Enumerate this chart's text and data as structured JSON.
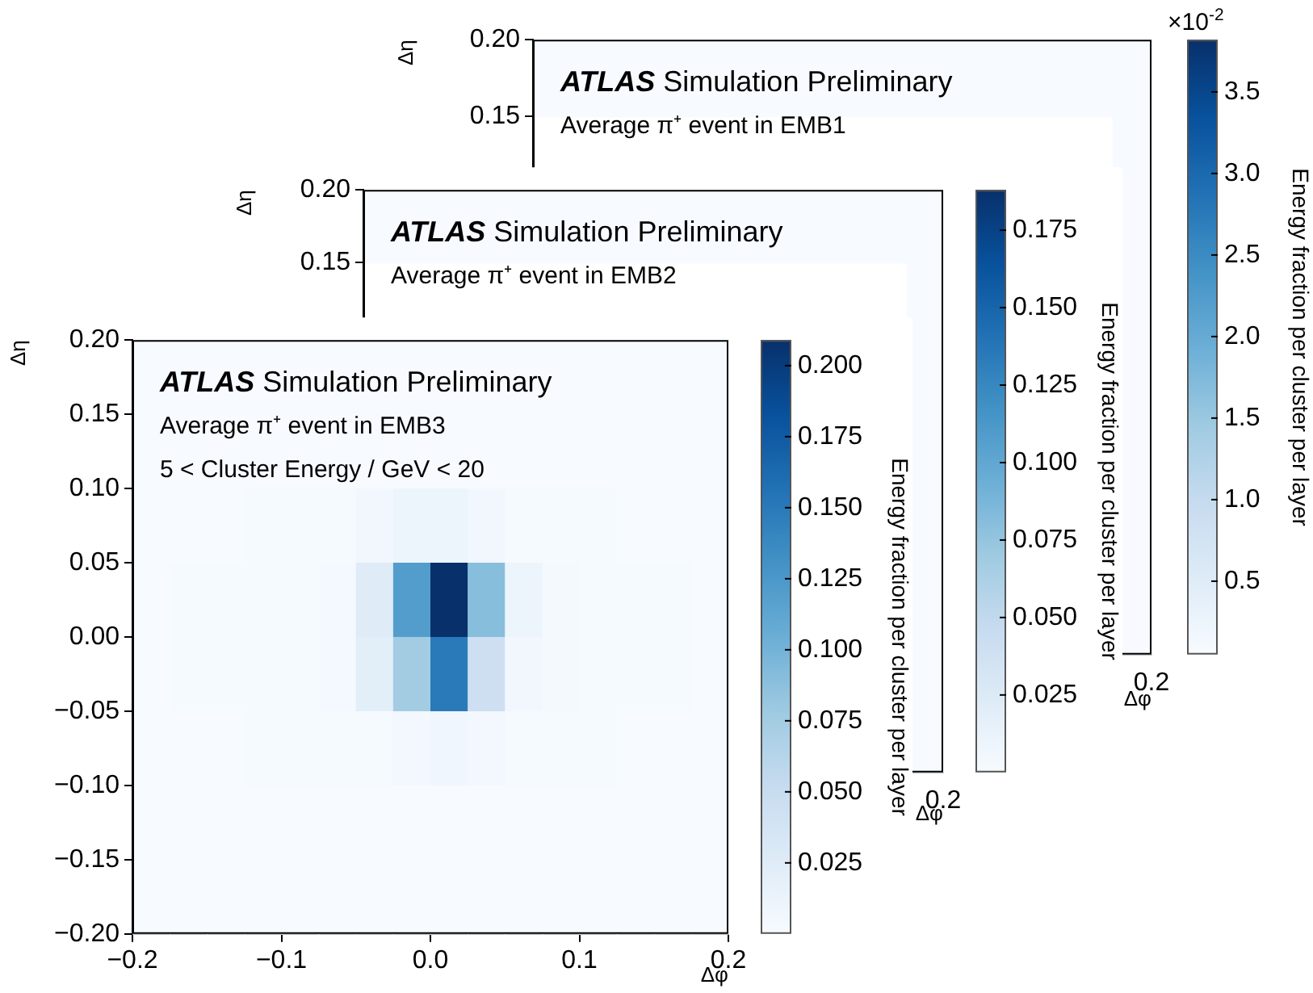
{
  "chart_data": [
    {
      "type": "heatmap",
      "title": "ATLAS Simulation Preliminary",
      "subtitle": "Average π⁺ event in EMB1",
      "xlabel": "Δφ",
      "ylabel": "Δη",
      "clabel": "Energy fraction per cluster per layer",
      "annotations": [
        "×10$^{-2}$",
        "0.2"
      ],
      "tick_labels": "y",
      "categories": [
        null,
        null,
        null,
        null,
        null,
        null,
        null,
        null,
        null,
        null,
        null,
        null,
        null,
        null,
        null,
        null
      ],
      "y": [
        0.175,
        0.125,
        0.075,
        0.025,
        -0.025,
        -0.075,
        -0.125,
        -0.175
      ],
      "cells": [
        [
          0.05,
          0.05,
          0.05,
          0.05,
          0.05,
          0.05,
          0.05,
          0.05,
          0.05,
          0.05,
          0.05,
          0.05,
          0.05,
          0.05,
          0.05,
          0.05
        ],
        [
          null,
          null,
          null,
          null,
          null,
          null,
          null,
          null,
          null,
          null,
          null,
          null,
          null,
          null,
          null,
          0.05
        ],
        [
          null,
          null,
          null,
          null,
          null,
          null,
          null,
          null,
          null,
          null,
          null,
          null,
          null,
          null,
          null,
          0.05
        ],
        [
          null,
          null,
          null,
          null,
          null,
          null,
          null,
          null,
          null,
          null,
          null,
          null,
          null,
          null,
          null,
          0.05
        ],
        [
          null,
          null,
          null,
          null,
          null,
          null,
          null,
          null,
          null,
          null,
          null,
          null,
          null,
          null,
          null,
          0.05
        ],
        [
          null,
          null,
          null,
          null,
          null,
          null,
          null,
          null,
          null,
          null,
          null,
          null,
          null,
          null,
          null,
          0.05
        ],
        [
          null,
          null,
          null,
          null,
          null,
          null,
          null,
          null,
          null,
          null,
          null,
          null,
          null,
          null,
          null,
          0.05
        ],
        [
          null,
          null,
          null,
          null,
          null,
          null,
          null,
          null,
          null,
          null,
          null,
          null,
          null,
          null,
          null,
          0.05
        ]
      ],
      "ylim": [
        -0.2,
        0.2
      ],
      "yticks": [
        {
          "value": 0.15,
          "label": "0.15"
        },
        {
          "value": 0.2,
          "label": "0.20"
        }
      ],
      "clim": [
        0.05,
        3.82
      ],
      "cticks": [
        {
          "value": 0.5,
          "label": "0.5"
        },
        {
          "value": 1,
          "label": "1.0"
        },
        {
          "value": 1.5,
          "label": "1.5"
        },
        {
          "value": 2,
          "label": "2.0"
        },
        {
          "value": 2.5,
          "label": "2.5"
        },
        {
          "value": 3,
          "label": "3.0"
        },
        {
          "value": 3.5,
          "label": "3.5"
        }
      ]
    },
    {
      "type": "heatmap",
      "title": "ATLAS Simulation Preliminary",
      "subtitle": "Average π⁺ event in EMB2",
      "xlabel": "Δφ",
      "ylabel": "Δη",
      "clabel": "Energy fraction per cluster per layer",
      "annotations": [
        "0.2"
      ],
      "tick_labels": "y",
      "categories": [
        null,
        null,
        null,
        null,
        null,
        null,
        null,
        null,
        null,
        null,
        null,
        null,
        null,
        null,
        null,
        null
      ],
      "y": [
        0.175,
        0.125,
        0.075,
        0.025,
        -0.025,
        -0.075,
        -0.125,
        -0.175
      ],
      "cells": [
        [
          0,
          0,
          0,
          0,
          0,
          0,
          0,
          0,
          0,
          0,
          0,
          0,
          0,
          0,
          0,
          0
        ],
        [
          null,
          null,
          null,
          null,
          null,
          null,
          null,
          null,
          null,
          null,
          null,
          null,
          null,
          null,
          null,
          0
        ],
        [
          null,
          null,
          null,
          null,
          null,
          null,
          null,
          null,
          null,
          null,
          null,
          null,
          null,
          null,
          null,
          0
        ],
        [
          null,
          null,
          null,
          null,
          null,
          null,
          null,
          null,
          null,
          null,
          null,
          null,
          null,
          null,
          null,
          0
        ],
        [
          null,
          null,
          null,
          null,
          null,
          null,
          null,
          null,
          null,
          null,
          null,
          null,
          null,
          null,
          null,
          0
        ],
        [
          null,
          null,
          null,
          null,
          null,
          null,
          null,
          null,
          null,
          null,
          null,
          null,
          null,
          null,
          null,
          0
        ],
        [
          null,
          null,
          null,
          null,
          null,
          null,
          null,
          null,
          null,
          null,
          null,
          null,
          null,
          null,
          null,
          0
        ],
        [
          null,
          null,
          null,
          null,
          null,
          null,
          null,
          null,
          null,
          null,
          null,
          null,
          null,
          null,
          null,
          0
        ]
      ],
      "ylim": [
        -0.2,
        0.2
      ],
      "yticks": [
        {
          "value": 0.15,
          "label": "0.15"
        },
        {
          "value": 0.2,
          "label": "0.20"
        }
      ],
      "clim": [
        0,
        0.188
      ],
      "cticks": [
        {
          "value": 0.025,
          "label": "0.025"
        },
        {
          "value": 0.05,
          "label": "0.050"
        },
        {
          "value": 0.075,
          "label": "0.075"
        },
        {
          "value": 0.1,
          "label": "0.100"
        },
        {
          "value": 0.125,
          "label": "0.125"
        },
        {
          "value": 0.15,
          "label": "0.150"
        },
        {
          "value": 0.175,
          "label": "0.175"
        }
      ]
    },
    {
      "type": "heatmap",
      "title": "ATLAS Simulation Preliminary",
      "subtitle": "Average π⁺ event in EMB3",
      "xlabel": "Δφ",
      "ylabel": "Δη",
      "clabel": "Energy fraction per cluster per layer",
      "annotations": [
        "5 < Cluster Energy / GeV < 20"
      ],
      "x": [
        -0.1875,
        -0.1625,
        -0.1375,
        -0.1125,
        -0.0875,
        -0.0625,
        -0.0375,
        -0.0125,
        0.0125,
        0.0375,
        0.0625,
        0.0875,
        0.1125,
        0.1375,
        0.1625,
        0.1875
      ],
      "y": [
        0.175,
        0.125,
        0.075,
        0.025,
        -0.025,
        -0.075,
        -0.125,
        -0.175
      ],
      "cells": [
        [
          0,
          0,
          0,
          0,
          0,
          0,
          0,
          0,
          0,
          0,
          0,
          0,
          0,
          0,
          0,
          0
        ],
        [
          0,
          0,
          0,
          0,
          0,
          0,
          0,
          0,
          0,
          0,
          0,
          0,
          0,
          0,
          0,
          0
        ],
        [
          0,
          0,
          0,
          0.002,
          0.002,
          0.002,
          0.006,
          0.01,
          0.01,
          0.006,
          0.002,
          0.002,
          0.002,
          0,
          0,
          0
        ],
        [
          0,
          0.002,
          0.002,
          0.002,
          0.002,
          0.004,
          0.025,
          0.12,
          0.209,
          0.09,
          0.01,
          0.003,
          0.002,
          0.002,
          0.002,
          0
        ],
        [
          0,
          0.002,
          0.002,
          0.002,
          0.002,
          0.004,
          0.022,
          0.075,
          0.15,
          0.045,
          0.006,
          0.003,
          0.002,
          0.002,
          0.002,
          0
        ],
        [
          0,
          0,
          0,
          0.002,
          0.002,
          0.002,
          0.002,
          0.005,
          0.008,
          0.005,
          0.002,
          0.002,
          0.002,
          0,
          0,
          0
        ],
        [
          0,
          0,
          0,
          0,
          0,
          0,
          0,
          0,
          0,
          0,
          0,
          0,
          0,
          0,
          0,
          0
        ],
        [
          0,
          0,
          0,
          0,
          0,
          0,
          0,
          0,
          0,
          0,
          0,
          0,
          0,
          0,
          0,
          0
        ]
      ],
      "xlim": [
        -0.2,
        0.2
      ],
      "xticks": [
        {
          "value": -0.2,
          "label": "−0.2"
        },
        {
          "value": -0.1,
          "label": "−0.1"
        },
        {
          "value": 0,
          "label": "0.0"
        },
        {
          "value": 0.1,
          "label": "0.1"
        },
        {
          "value": 0.2,
          "label": "0.2"
        }
      ],
      "ylim": [
        -0.2,
        0.2
      ],
      "yticks": [
        {
          "value": -0.2,
          "label": "−0.20"
        },
        {
          "value": -0.15,
          "label": "−0.15"
        },
        {
          "value": -0.1,
          "label": "−0.10"
        },
        {
          "value": -0.05,
          "label": "−0.05"
        },
        {
          "value": 0,
          "label": "0.00"
        },
        {
          "value": 0.05,
          "label": "0.05"
        },
        {
          "value": 0.1,
          "label": "0.10"
        },
        {
          "value": 0.15,
          "label": "0.15"
        },
        {
          "value": 0.2,
          "label": "0.20"
        }
      ],
      "clim": [
        0,
        0.209
      ],
      "cticks": [
        {
          "value": 0.025,
          "label": "0.025"
        },
        {
          "value": 0.05,
          "label": "0.050"
        },
        {
          "value": 0.075,
          "label": "0.075"
        },
        {
          "value": 0.1,
          "label": "0.100"
        },
        {
          "value": 0.125,
          "label": "0.125"
        },
        {
          "value": 0.15,
          "label": "0.150"
        },
        {
          "value": 0.175,
          "label": "0.175"
        },
        {
          "value": 0.2,
          "label": "0.200"
        }
      ]
    }
  ]
}
